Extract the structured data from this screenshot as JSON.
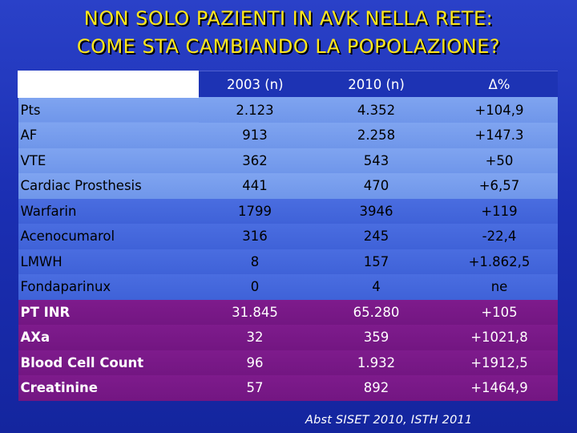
{
  "title": {
    "line1": "NON SOLO PAZIENTI IN AVK NELLA RETE:",
    "line2": "COME STA CAMBIANDO LA POPOLAZIONE?"
  },
  "table": {
    "headers": [
      "",
      "2003 (n)",
      "2010 (n)",
      "Δ%"
    ],
    "rows": [
      {
        "label": "Pts",
        "c2003": "2.123",
        "c2010": "4.352",
        "delta": "+104,9"
      },
      {
        "label": "AF",
        "c2003": "913",
        "c2010": "2.258",
        "delta": "+147.3"
      },
      {
        "label": "VTE",
        "c2003": "362",
        "c2010": "543",
        "delta": "+50"
      },
      {
        "label": "Cardiac Prosthesis",
        "c2003": "441",
        "c2010": "470",
        "delta": "+6,57"
      },
      {
        "label": "Warfarin",
        "c2003": "1799",
        "c2010": "3946",
        "delta": "+119"
      },
      {
        "label": "Acenocumarol",
        "c2003": "316",
        "c2010": "245",
        "delta": "-22,4"
      },
      {
        "label": "LMWH",
        "c2003": "8",
        "c2010": "157",
        "delta": "+1.862,5"
      },
      {
        "label": "Fondaparinux",
        "c2003": "0",
        "c2010": "4",
        "delta": "ne"
      },
      {
        "label": "PT INR",
        "c2003": "31.845",
        "c2010": "65.280",
        "delta": "+105"
      },
      {
        "label": "AXa",
        "c2003": "32",
        "c2010": "359",
        "delta": "+1021,8"
      },
      {
        "label": "Blood Cell Count",
        "c2003": "96",
        "c2010": "1.932",
        "delta": "+1912,5"
      },
      {
        "label": "Creatinine",
        "c2003": "57",
        "c2010": "892",
        "delta": "+1464,9"
      }
    ]
  },
  "footnote": "Abst SISET 2010, ISTH 2011",
  "colors": {
    "background": "#1b2fb3",
    "title": "#ffe81a",
    "group_patients": "#7fa4f0",
    "group_drugs": "#4a6de0",
    "group_tests": "#7e1b8c"
  }
}
